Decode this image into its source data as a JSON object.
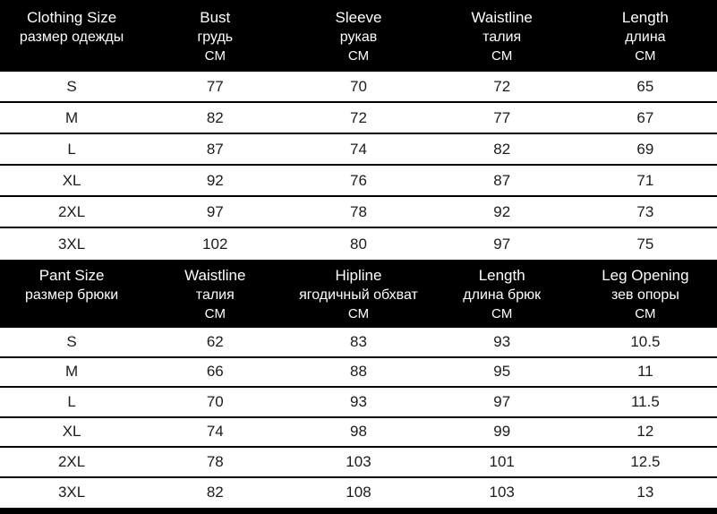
{
  "page": {
    "background": "#ffffff",
    "header_bg": "#000000",
    "header_text_color": "#ffffff",
    "body_text_color": "#1c1c1c",
    "divider_color": "#000000"
  },
  "chart_data": [
    {
      "type": "table",
      "title": "Clothing Size",
      "columns": [
        {
          "en": "Clothing Size",
          "ru": "размер одежды",
          "unit": ""
        },
        {
          "en": "Bust",
          "ru": "грудь",
          "unit": "CM"
        },
        {
          "en": "Sleeve",
          "ru": "рукав",
          "unit": "CM"
        },
        {
          "en": "Waistline",
          "ru": "талия",
          "unit": "CM"
        },
        {
          "en": "Length",
          "ru": "длина",
          "unit": "CM"
        }
      ],
      "rows": [
        [
          "S",
          "77",
          "70",
          "72",
          "65"
        ],
        [
          "M",
          "82",
          "72",
          "77",
          "67"
        ],
        [
          "L",
          "87",
          "74",
          "82",
          "69"
        ],
        [
          "XL",
          "92",
          "76",
          "87",
          "71"
        ],
        [
          "2XL",
          "97",
          "78",
          "92",
          "73"
        ],
        [
          "3XL",
          "102",
          "80",
          "97",
          "75"
        ]
      ]
    },
    {
      "type": "table",
      "title": "Pant Size",
      "columns": [
        {
          "en": "Pant Size",
          "ru": "размер брюки",
          "unit": ""
        },
        {
          "en": "Waistline",
          "ru": "талия",
          "unit": "CM"
        },
        {
          "en": "Hipline",
          "ru": "ягодичный обхват",
          "unit": "CM"
        },
        {
          "en": "Length",
          "ru": "длина брюк",
          "unit": "CM"
        },
        {
          "en": "Leg Opening",
          "ru": "зев опоры",
          "unit": "CM"
        }
      ],
      "rows": [
        [
          "S",
          "62",
          "83",
          "93",
          "10.5"
        ],
        [
          "M",
          "66",
          "88",
          "95",
          "11"
        ],
        [
          "L",
          "70",
          "93",
          "97",
          "11.5"
        ],
        [
          "XL",
          "74",
          "98",
          "99",
          "12"
        ],
        [
          "2XL",
          "78",
          "103",
          "101",
          "12.5"
        ],
        [
          "3XL",
          "82",
          "108",
          "103",
          "13"
        ]
      ]
    }
  ]
}
